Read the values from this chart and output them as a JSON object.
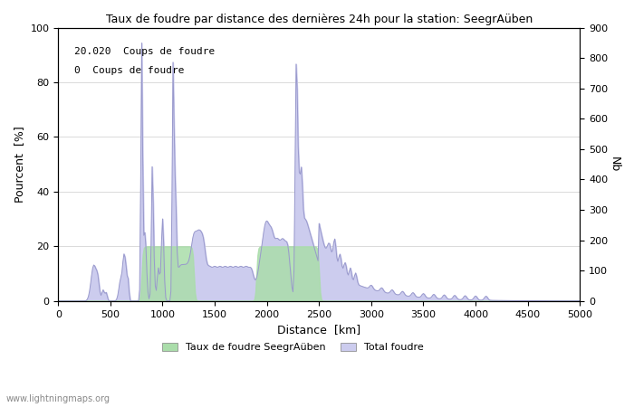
{
  "title": "Taux de foudre par distance des dernières 24h pour la station: SeegrAüben",
  "xlabel": "Distance  [km]",
  "ylabel_left": "Pourcent  [%]",
  "ylabel_right": "Nb",
  "annotation_line1": "20.020  Coups de foudre",
  "annotation_line2": "0  Coups de foudre",
  "xlim": [
    0,
    5000
  ],
  "ylim_left": [
    0,
    100
  ],
  "ylim_right": [
    0,
    900
  ],
  "xticks": [
    0,
    500,
    1000,
    1500,
    2000,
    2500,
    3000,
    3500,
    4000,
    4500,
    5000
  ],
  "yticks_left": [
    0,
    20,
    40,
    60,
    80,
    100
  ],
  "yticks_right": [
    0,
    100,
    200,
    300,
    400,
    500,
    600,
    700,
    800,
    900
  ],
  "legend_label1": "Taux de foudre SeegrAüben",
  "legend_label2": "Total foudre",
  "fill_color_green": "#aaddaa",
  "fill_color_blue": "#ccccee",
  "line_color": "#9999cc",
  "watermark": "www.lightningmaps.org",
  "background_color": "#ffffff",
  "grid_color": "#cccccc"
}
